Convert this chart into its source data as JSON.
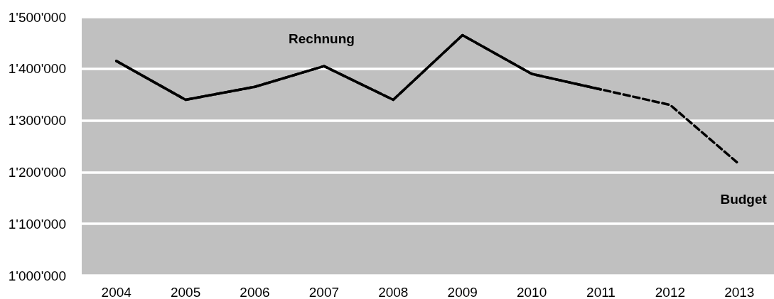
{
  "chart_data": {
    "type": "line",
    "categories": [
      "2004",
      "2005",
      "2006",
      "2007",
      "2008",
      "2009",
      "2010",
      "2011",
      "2012",
      "2013"
    ],
    "series": [
      {
        "name": "Rechnung",
        "color": "#000000",
        "line_style": "solid",
        "values": [
          1415000,
          1340000,
          1365000,
          1405000,
          1340000,
          1465000,
          1390000,
          1360000,
          null,
          null
        ]
      },
      {
        "name": "Budget",
        "color": "#000000",
        "line_style": "dashed",
        "values": [
          1415000,
          1340000,
          1365000,
          1405000,
          1340000,
          1465000,
          1390000,
          1360000,
          1330000,
          1215000
        ]
      }
    ],
    "ylim": [
      1000000,
      1500000
    ],
    "yticks": [
      {
        "value": 1000000,
        "label": "1'000'000"
      },
      {
        "value": 1100000,
        "label": "1'100'000"
      },
      {
        "value": 1200000,
        "label": "1'200'000"
      },
      {
        "value": 1300000,
        "label": "1'300'000"
      },
      {
        "value": 1400000,
        "label": "1'400'000"
      },
      {
        "value": 1500000,
        "label": "1'500'000"
      }
    ],
    "grid": "y",
    "legend": false,
    "marker": "none"
  }
}
